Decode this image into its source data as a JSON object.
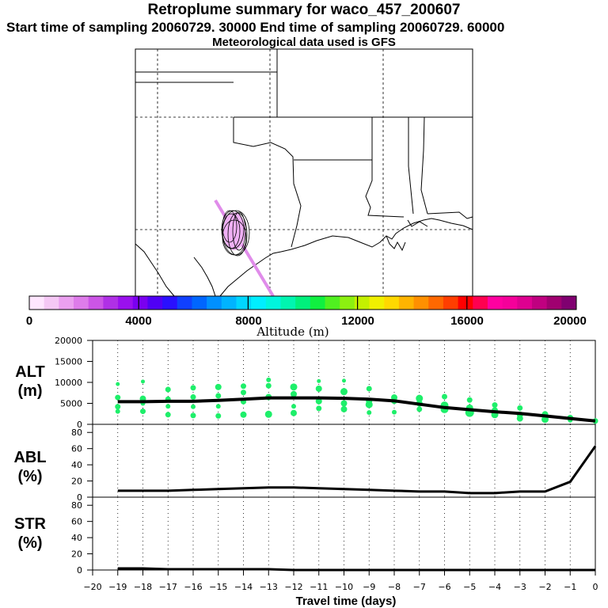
{
  "header": {
    "title": "Retroplume summary for waco_457_200607",
    "sampling_line": "Start time of sampling 20060729. 30000     End time of sampling 20060729. 60000",
    "met_line": "Meteorological data used is GFS"
  },
  "colorbar": {
    "label": "Altitude (m)",
    "ticks": [
      "0",
      "4000",
      "8000",
      "12000",
      "16000",
      "20000"
    ],
    "colors": [
      "#ffe6ff",
      "#f5c8f5",
      "#eba0f0",
      "#de7cea",
      "#cc55e6",
      "#b030e6",
      "#9a10ee",
      "#7a00f0",
      "#5000f5",
      "#2a10ff",
      "#1040ff",
      "#0066ff",
      "#0090ff",
      "#00b4ff",
      "#00d6ff",
      "#00eeff",
      "#00f5dd",
      "#00f5b0",
      "#00f07c",
      "#10f040",
      "#50f020",
      "#8cf010",
      "#c4f000",
      "#f0f000",
      "#ffd800",
      "#ffb400",
      "#ff9000",
      "#ff6800",
      "#ff3e00",
      "#ff0000",
      "#ff0050",
      "#ff00a0",
      "#f5009a",
      "#de0090",
      "#c00080",
      "#a00070",
      "#800070"
    ]
  },
  "chart_data": [
    {
      "type": "scatter",
      "panel": "ALT",
      "ylabel_line1": "ALT",
      "ylabel_line2": "(m)",
      "ylim": [
        0,
        20000
      ],
      "yticks": [
        "0",
        "5000",
        "10000",
        "15000",
        "20000"
      ],
      "median_line": [
        [
          -19,
          5400
        ],
        [
          -18,
          5400
        ],
        [
          -17,
          5500
        ],
        [
          -16,
          5500
        ],
        [
          -15,
          5700
        ],
        [
          -14,
          6000
        ],
        [
          -13,
          6300
        ],
        [
          -12,
          6300
        ],
        [
          -11,
          6300
        ],
        [
          -10,
          6200
        ],
        [
          -9,
          6000
        ],
        [
          -8,
          5600
        ],
        [
          -7,
          4800
        ],
        [
          -6,
          4000
        ],
        [
          -5,
          3500
        ],
        [
          -4,
          3000
        ],
        [
          -3,
          2600
        ],
        [
          -2,
          2000
        ],
        [
          -1,
          1400
        ],
        [
          0,
          800
        ]
      ],
      "points": [
        [
          -19,
          6400,
          2.5
        ],
        [
          -19,
          4200,
          2.5
        ],
        [
          -19,
          3100,
          2
        ],
        [
          -19,
          9600,
          1.5
        ],
        [
          -18,
          6100,
          3
        ],
        [
          -18,
          3100,
          2.5
        ],
        [
          -18,
          5000,
          2
        ],
        [
          -18,
          10200,
          1.5
        ],
        [
          -17,
          8300,
          2.5
        ],
        [
          -17,
          6000,
          2.5
        ],
        [
          -17,
          2300,
          2.5
        ],
        [
          -17,
          4300,
          2
        ],
        [
          -16,
          8700,
          2.5
        ],
        [
          -16,
          6500,
          2.5
        ],
        [
          -16,
          2100,
          2.5
        ],
        [
          -16,
          4200,
          2
        ],
        [
          -15,
          8900,
          3
        ],
        [
          -15,
          6800,
          2.5
        ],
        [
          -15,
          4300,
          2
        ],
        [
          -15,
          2000,
          2.5
        ],
        [
          -14,
          9100,
          2.5
        ],
        [
          -14,
          7600,
          2.5
        ],
        [
          -14,
          5400,
          2.5
        ],
        [
          -14,
          2300,
          3
        ],
        [
          -13,
          10600,
          2
        ],
        [
          -13,
          9200,
          2.5
        ],
        [
          -13,
          6500,
          3
        ],
        [
          -13,
          2400,
          3.5
        ],
        [
          -12,
          8900,
          3.5
        ],
        [
          -12,
          7200,
          3
        ],
        [
          -12,
          4300,
          2
        ],
        [
          -12,
          2700,
          3
        ],
        [
          -11,
          8500,
          3
        ],
        [
          -11,
          5500,
          3
        ],
        [
          -11,
          3800,
          2.5
        ],
        [
          -11,
          10300,
          1.5
        ],
        [
          -10,
          7800,
          3.5
        ],
        [
          -10,
          5000,
          3
        ],
        [
          -10,
          3600,
          3
        ],
        [
          -10,
          10400,
          1.5
        ],
        [
          -9,
          8500,
          2.5
        ],
        [
          -9,
          5600,
          3
        ],
        [
          -9,
          4700,
          3.5
        ],
        [
          -9,
          2800,
          2
        ],
        [
          -8,
          6400,
          3
        ],
        [
          -8,
          5600,
          3
        ],
        [
          -8,
          2900,
          2
        ],
        [
          -7,
          6200,
          3.5
        ],
        [
          -7,
          5000,
          3
        ],
        [
          -7,
          3600,
          2.5
        ],
        [
          -6,
          6600,
          2.5
        ],
        [
          -6,
          4500,
          4
        ],
        [
          -6,
          3600,
          4
        ],
        [
          -5,
          5800,
          2.5
        ],
        [
          -5,
          3900,
          3.5
        ],
        [
          -5,
          2800,
          4.5
        ],
        [
          -4,
          4600,
          2.5
        ],
        [
          -4,
          3300,
          3
        ],
        [
          -4,
          2300,
          3.5
        ],
        [
          -3,
          3900,
          2.5
        ],
        [
          -3,
          2300,
          3
        ],
        [
          -3,
          1400,
          3
        ],
        [
          -2,
          2400,
          3
        ],
        [
          -2,
          1200,
          3.5
        ],
        [
          -1,
          1500,
          3
        ],
        [
          -1,
          1000,
          2
        ],
        [
          0,
          800,
          2.5
        ]
      ]
    },
    {
      "type": "line",
      "panel": "ABL",
      "ylabel_line1": "ABL",
      "ylabel_line2": "(%)",
      "ylim": [
        0,
        90
      ],
      "yticks": [
        "0",
        "20",
        "40",
        "60",
        "80"
      ],
      "x": [
        -19,
        -18,
        -17,
        -16,
        -15,
        -14,
        -13,
        -12,
        -11,
        -10,
        -9,
        -8,
        -7,
        -6,
        -5,
        -4,
        -3,
        -2,
        -1,
        0
      ],
      "values": [
        8,
        8,
        8,
        9,
        10,
        11,
        12,
        12,
        11,
        10,
        9,
        8,
        7,
        7,
        5,
        5,
        7,
        7,
        19,
        63
      ]
    },
    {
      "type": "line",
      "panel": "STR",
      "ylabel_line1": "STR",
      "ylabel_line2": "(%)",
      "ylim": [
        0,
        90
      ],
      "yticks": [
        "0",
        "20",
        "40",
        "60",
        "80"
      ],
      "x": [
        -19,
        -18,
        -17,
        -16,
        -15,
        -14,
        -13,
        -12,
        -11,
        -10,
        -9,
        -8,
        -7,
        -6,
        -5,
        -4,
        -3,
        -2,
        -1,
        0
      ],
      "values": [
        2,
        2,
        1,
        1,
        1,
        1,
        1,
        0,
        0,
        0,
        0,
        0,
        0,
        0,
        0,
        0,
        0,
        0,
        0,
        0
      ]
    }
  ],
  "xaxis": {
    "label": "Travel time (days)",
    "ticks": [
      "−20",
      "−19",
      "−18",
      "−17",
      "−16",
      "−15",
      "−14",
      "−13",
      "−12",
      "−11",
      "−10",
      "−9",
      "−8",
      "−7",
      "−6",
      "−5",
      "−4",
      "−3",
      "−2",
      "−1",
      "0"
    ]
  }
}
